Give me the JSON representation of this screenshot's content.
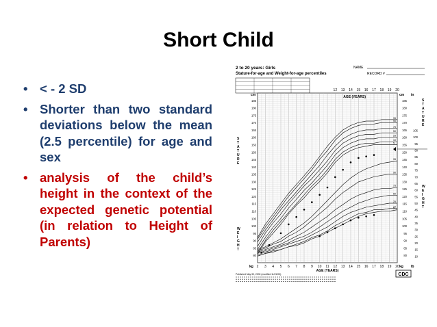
{
  "slide": {
    "title": "Short Child",
    "bullets": [
      {
        "text": "< - 2 SD",
        "color": "#1f3e6e"
      },
      {
        "text": "Shorter than two standard deviations below the mean (2.5 percentile) for age and sex",
        "color": "#1f3e6e"
      },
      {
        "text": "analysis of the child’s height in the context of the expected genetic potential (in relation to Height of Parents)",
        "color": "#c00000"
      }
    ],
    "bullet_char": "•"
  },
  "chart_header": {
    "line1": "2 to 20 years: Girls",
    "line2": "Stature-for-age and Weight-for-age percentiles",
    "name_label": "NAME",
    "record_label": "RECORD #",
    "age_years_top": "AGE (YEARS)",
    "age_years_bottom": "AGE (YEARS)",
    "cm_label": "cm",
    "in_label": "in",
    "kg_label": "kg",
    "lb_label": "lb",
    "stature_vertical": "STATURE",
    "weight_vertical": "WEIGHT",
    "annotation": "TH",
    "logo": "CDC",
    "footer_line": "Published May 30, 2000 (modified 11/21/00)."
  },
  "chart_data": {
    "type": "line",
    "x_label": "AGE (YEARS)",
    "x": [
      2,
      3,
      4,
      5,
      6,
      7,
      8,
      9,
      10,
      11,
      12,
      13,
      14,
      15,
      16,
      17,
      18,
      19,
      20
    ],
    "xlim": [
      2,
      20
    ],
    "top_ages": [
      12,
      13,
      14,
      15,
      16,
      17,
      18,
      19,
      20
    ],
    "stature_ticks_cm": [
      80,
      85,
      90,
      95,
      100,
      105,
      110,
      115,
      120,
      125,
      130,
      135,
      140,
      145,
      150,
      155,
      160,
      165,
      170,
      175,
      180,
      185,
      190
    ],
    "stature_ylim_cm": [
      75,
      190
    ],
    "weight_ticks_kg": [
      10,
      15,
      20,
      25,
      30,
      35,
      40,
      45,
      50,
      55,
      60,
      65,
      70,
      75,
      80,
      85,
      90,
      95,
      100,
      105
    ],
    "weight_ylim_kg": [
      5,
      105
    ],
    "stature_percentiles": [
      {
        "p": "95",
        "values": [
          92,
          101,
          108,
          115,
          122,
          128,
          134,
          140,
          147,
          154,
          160,
          165,
          168,
          170,
          171,
          171,
          172,
          172,
          172
        ]
      },
      {
        "p": "90",
        "values": [
          91,
          99,
          106,
          113,
          120,
          126,
          132,
          138,
          145,
          151,
          158,
          163,
          166,
          168,
          169,
          169,
          170,
          170,
          170
        ]
      },
      {
        "p": "75",
        "values": [
          89,
          97,
          104,
          111,
          117,
          123,
          129,
          135,
          141,
          148,
          154,
          159,
          162,
          164,
          165,
          165,
          166,
          166,
          166
        ]
      },
      {
        "p": "50",
        "values": [
          86,
          95,
          102,
          108,
          115,
          121,
          127,
          132,
          138,
          144,
          151,
          156,
          159,
          161,
          162,
          162,
          163,
          163,
          163
        ]
      },
      {
        "p": "25",
        "values": [
          84,
          92,
          99,
          105,
          112,
          118,
          124,
          129,
          135,
          141,
          148,
          153,
          156,
          158,
          159,
          159,
          160,
          160,
          160
        ]
      },
      {
        "p": "10",
        "values": [
          82,
          90,
          97,
          103,
          109,
          115,
          121,
          127,
          132,
          138,
          145,
          150,
          153,
          155,
          156,
          156,
          157,
          157,
          157
        ]
      },
      {
        "p": "5",
        "values": [
          81,
          89,
          95,
          101,
          108,
          114,
          119,
          125,
          130,
          136,
          143,
          148,
          151,
          153,
          154,
          155,
          155,
          155,
          155
        ]
      }
    ],
    "weight_percentiles": [
      {
        "p": "95",
        "values": [
          15,
          17,
          20,
          23,
          27,
          31,
          35,
          40,
          46,
          52,
          58,
          64,
          69,
          73,
          76,
          78,
          80,
          81,
          82
        ]
      },
      {
        "p": "90",
        "values": [
          14,
          16,
          19,
          21,
          25,
          28,
          32,
          37,
          42,
          47,
          53,
          58,
          62,
          66,
          68,
          70,
          71,
          72,
          72
        ]
      },
      {
        "p": "75",
        "values": [
          13,
          15,
          17,
          19,
          22,
          25,
          28,
          32,
          36,
          40,
          45,
          49,
          53,
          56,
          58,
          60,
          61,
          61,
          62
        ]
      },
      {
        "p": "50",
        "values": [
          12,
          14,
          16,
          18,
          20,
          23,
          25,
          28,
          32,
          36,
          40,
          44,
          47,
          50,
          52,
          54,
          55,
          56,
          56
        ]
      },
      {
        "p": "25",
        "values": [
          11,
          13,
          15,
          17,
          19,
          21,
          23,
          26,
          29,
          32,
          36,
          40,
          43,
          45,
          47,
          48,
          49,
          50,
          50
        ]
      },
      {
        "p": "10",
        "values": [
          10,
          12,
          14,
          15,
          17,
          19,
          21,
          24,
          26,
          29,
          33,
          36,
          39,
          42,
          43,
          45,
          45,
          46,
          46
        ]
      },
      {
        "p": "5",
        "values": [
          10,
          12,
          13,
          15,
          17,
          18,
          20,
          23,
          25,
          28,
          31,
          34,
          37,
          40,
          42,
          43,
          44,
          44,
          45
        ]
      }
    ],
    "child_stature_points": [
      {
        "age": 2.5,
        "cm": 82
      },
      {
        "age": 3.5,
        "cm": 87
      },
      {
        "age": 5,
        "cm": 95
      },
      {
        "age": 6,
        "cm": 101
      },
      {
        "age": 7,
        "cm": 106
      },
      {
        "age": 8,
        "cm": 111
      },
      {
        "age": 9,
        "cm": 116
      },
      {
        "age": 10,
        "cm": 121
      },
      {
        "age": 11,
        "cm": 126
      },
      {
        "age": 12,
        "cm": 133
      },
      {
        "age": 13,
        "cm": 138
      },
      {
        "age": 14,
        "cm": 143
      },
      {
        "age": 15,
        "cm": 146
      },
      {
        "age": 16,
        "cm": 147
      },
      {
        "age": 17,
        "cm": 148
      }
    ],
    "child_weight_points": [
      {
        "age": 10,
        "kg": 25
      },
      {
        "age": 11,
        "kg": 28
      },
      {
        "age": 12,
        "kg": 31
      },
      {
        "age": 13,
        "kg": 34
      },
      {
        "age": 14,
        "kg": 37
      },
      {
        "age": 15,
        "kg": 39
      },
      {
        "age": 16,
        "kg": 40
      },
      {
        "age": 17,
        "kg": 41
      }
    ],
    "target_height_cm": 152
  }
}
